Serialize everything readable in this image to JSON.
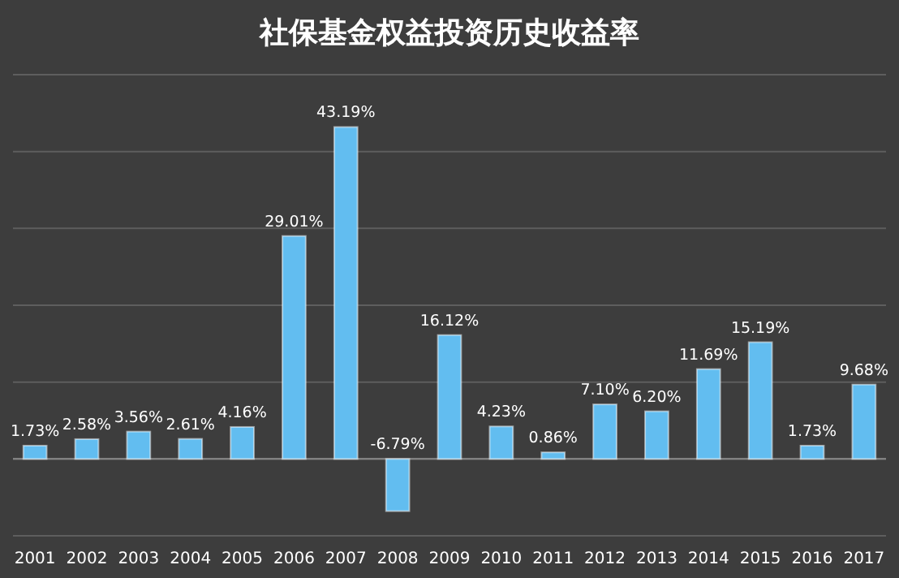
{
  "chart_data": {
    "type": "bar",
    "title": "社保基金权益投资历史收益率",
    "categories": [
      "2001",
      "2002",
      "2003",
      "2004",
      "2005",
      "2006",
      "2007",
      "2008",
      "2009",
      "2010",
      "2011",
      "2012",
      "2013",
      "2014",
      "2015",
      "2016",
      "2017"
    ],
    "values": [
      1.73,
      2.58,
      3.56,
      2.61,
      4.16,
      29.01,
      43.19,
      -6.79,
      16.12,
      4.23,
      0.86,
      7.1,
      6.2,
      11.69,
      15.19,
      1.73,
      9.68
    ],
    "value_labels": [
      "1.73%",
      "2.58%",
      "3.56%",
      "2.61%",
      "4.16%",
      "29.01%",
      "43.19%",
      "-6.79%",
      "16.12%",
      "4.23%",
      "0.86%",
      "7.10%",
      "6.20%",
      "11.69%",
      "15.19%",
      "1.73%",
      "9.68%"
    ],
    "color": "#62bdf0",
    "ylim": [
      -10,
      50
    ],
    "yticks": [
      {
        "value": -10,
        "label": null
      },
      {
        "value": 0,
        "label": null
      },
      {
        "value": 10,
        "label": null
      },
      {
        "value": 20,
        "label": null
      },
      {
        "value": 30,
        "label": null
      },
      {
        "value": 40,
        "label": null
      },
      {
        "value": 50,
        "label": null
      }
    ],
    "grid": "y",
    "tick_labels": "x"
  }
}
